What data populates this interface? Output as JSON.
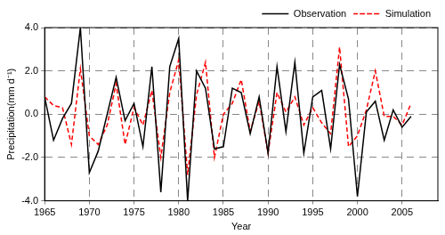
{
  "chart_data": {
    "type": "line",
    "x_label": "Year",
    "y_label": "Precipitation(mm d⁻¹)",
    "x": [
      1965,
      1966,
      1967,
      1968,
      1969,
      1970,
      1971,
      1972,
      1973,
      1974,
      1975,
      1976,
      1977,
      1978,
      1979,
      1980,
      1981,
      1982,
      1983,
      1984,
      1985,
      1986,
      1987,
      1988,
      1989,
      1990,
      1991,
      1992,
      1993,
      1994,
      1995,
      1996,
      1997,
      1998,
      1999,
      2000,
      2001,
      2002,
      2003,
      2004,
      2005,
      2006
    ],
    "series": [
      {
        "name": "Simulation",
        "color": "#ff0000",
        "line_style": "dashed",
        "values": [
          0.8,
          0.4,
          0.3,
          -1.4,
          2.1,
          -1.0,
          -1.4,
          -0.5,
          1.4,
          -1.4,
          0.3,
          -0.5,
          1.1,
          -2.0,
          1.0,
          2.5,
          -2.8,
          0.9,
          2.4,
          -2.0,
          0.0,
          0.5,
          1.6,
          -0.8,
          0.6,
          -1.8,
          1.0,
          0.1,
          0.8,
          -0.5,
          0.3,
          -0.4,
          -0.9,
          3.1,
          -1.5,
          -1.0,
          0.2,
          2.0,
          -0.1,
          -0.1,
          -0.5,
          0.5
        ]
      },
      {
        "name": "Observation",
        "color": "#000000",
        "line_style": "solid",
        "values": [
          0.8,
          -1.2,
          -0.2,
          0.5,
          4.0,
          -2.7,
          -1.7,
          0.0,
          1.7,
          -0.3,
          0.5,
          -1.5,
          2.2,
          -3.6,
          2.2,
          3.5,
          -4.0,
          2.0,
          1.2,
          -1.6,
          -1.5,
          1.2,
          1.0,
          -0.9,
          0.8,
          -1.8,
          2.2,
          -0.8,
          2.4,
          -1.8,
          0.8,
          1.1,
          -1.6,
          2.3,
          0.7,
          -3.8,
          0.1,
          0.6,
          -1.2,
          0.2,
          -0.6,
          -0.1
        ]
      }
    ],
    "xlim": [
      1965,
      2009
    ],
    "xticks": [
      1965,
      1970,
      1975,
      1980,
      1985,
      1990,
      1995,
      2000,
      2005
    ],
    "ylim": [
      -4,
      4
    ],
    "yticks": [
      {
        "value": -4,
        "label": "-4.0"
      },
      {
        "value": -2,
        "label": "-2.0"
      },
      {
        "value": 0,
        "label": "0.0"
      },
      {
        "value": 2,
        "label": "2.0"
      },
      {
        "value": 4,
        "label": "4.0"
      }
    ],
    "grid": true,
    "legend": "top-right"
  }
}
